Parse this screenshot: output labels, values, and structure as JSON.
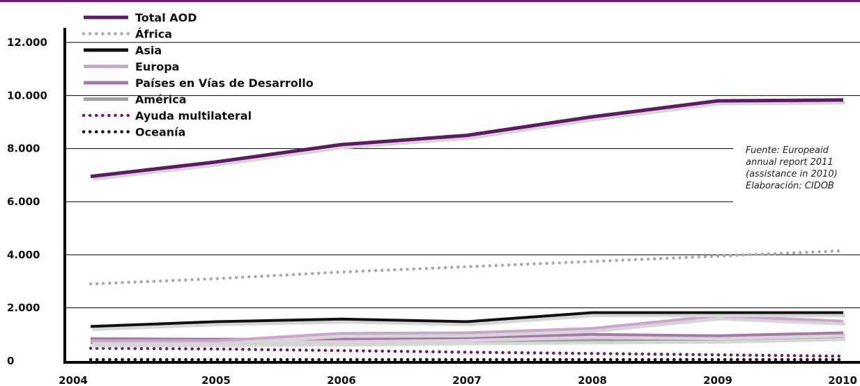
{
  "colors": {
    "top_rule": "#6b1e6e",
    "total_aod": "#5f1a63",
    "africa": "#aaaaaa",
    "asia": "#111111",
    "europa": "#c9a6cc",
    "pvd": "#a777aa",
    "america": "#a0a0a0",
    "multilateral": "#6b1e6e",
    "oceania": "#111111",
    "axis": "#000000",
    "grid": "#000000"
  },
  "source_note": {
    "lines": [
      "Fuente: Europeaid",
      "annual report 2011",
      "(assistance in 2010)",
      "Elaboración: CIDOB"
    ]
  },
  "chart_data": {
    "type": "line",
    "title": "",
    "xlabel": "",
    "ylabel": "",
    "categories": [
      "2004",
      "2005",
      "2006",
      "2007",
      "2008",
      "2009",
      "2010"
    ],
    "ylim": [
      0,
      12000
    ],
    "y_ticks": [
      0,
      2000,
      4000,
      6000,
      8000,
      10000,
      12000
    ],
    "y_tick_labels": [
      "0",
      "2.000",
      "4.000",
      "6.000",
      "8.000",
      "10.000",
      "12.000"
    ],
    "grid": "horizontal",
    "legend_position": "top-left",
    "series": [
      {
        "name": "Total AOD",
        "style": "solid",
        "color_key": "total_aod",
        "values": [
          6950,
          7500,
          8150,
          8500,
          9200,
          9800,
          9830
        ]
      },
      {
        "name": "África",
        "style": "dotted",
        "color_key": "africa",
        "values": [
          2900,
          3100,
          3350,
          3550,
          3750,
          3950,
          4150
        ]
      },
      {
        "name": "Asia",
        "style": "solid",
        "color_key": "asia",
        "values": [
          1300,
          1480,
          1580,
          1480,
          1820,
          1820,
          1820
        ]
      },
      {
        "name": "Europa",
        "style": "solid",
        "color_key": "europa",
        "values": [
          760,
          760,
          1040,
          1060,
          1230,
          1700,
          1500
        ]
      },
      {
        "name": "Países en Vías de Desarrollo",
        "style": "solid",
        "color_key": "pvd",
        "values": [
          840,
          820,
          830,
          880,
          1000,
          950,
          1060
        ]
      },
      {
        "name": "América",
        "style": "solid",
        "color_key": "america",
        "values": [
          680,
          700,
          710,
          760,
          790,
          820,
          920
        ]
      },
      {
        "name": "Ayuda multilateral",
        "style": "dotted",
        "color_key": "multilateral",
        "values": [
          480,
          450,
          390,
          330,
          280,
          230,
          180
        ]
      },
      {
        "name": "Oceanía",
        "style": "dotted",
        "color_key": "oceania",
        "values": [
          50,
          50,
          50,
          50,
          50,
          50,
          50
        ]
      }
    ]
  }
}
